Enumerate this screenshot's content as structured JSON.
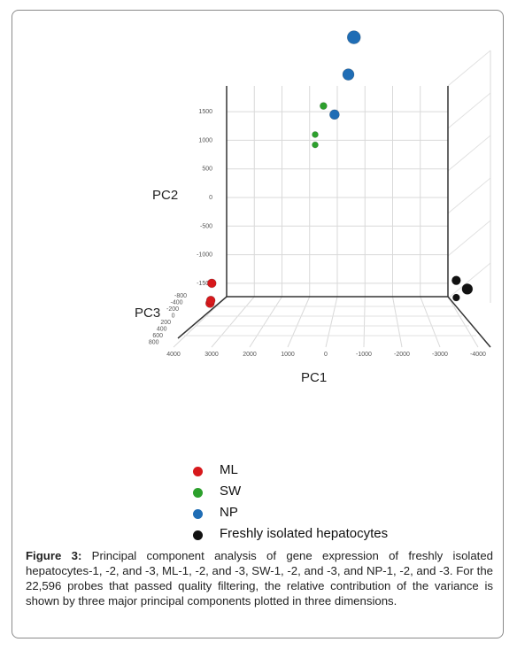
{
  "chart_data": {
    "type": "scatter",
    "axes": {
      "x": {
        "label": "PC1",
        "ticks": [
          "4000",
          "3000",
          "2000",
          "1000",
          "0",
          "-1000",
          "-2000",
          "-3000",
          "-4000"
        ]
      },
      "y": {
        "label": "PC2",
        "ticks": [
          "1500",
          "1000",
          "500",
          "0",
          "-500",
          "-1000",
          "-1500"
        ]
      },
      "z": {
        "label": "PC3",
        "ticks": [
          "-800",
          "-400",
          "-200",
          "0",
          "200",
          "400",
          "600",
          "800"
        ]
      }
    },
    "series": [
      {
        "name": "ML",
        "color": "#d7191c",
        "points": [
          {
            "pc1": 3800,
            "pc2": -1500
          },
          {
            "pc1": 3800,
            "pc2": -1850
          },
          {
            "pc1": 3900,
            "pc2": -1800
          }
        ]
      },
      {
        "name": "SW",
        "color": "#2ca02c",
        "points": [
          {
            "pc1": 500,
            "pc2": 1600
          },
          {
            "pc1": 800,
            "pc2": 1100
          },
          {
            "pc1": 800,
            "pc2": 920
          }
        ]
      },
      {
        "name": "NP",
        "color": "#1f6db5",
        "points": [
          {
            "pc1": -600,
            "pc2": 2800
          },
          {
            "pc1": -400,
            "pc2": 2150
          },
          {
            "pc1": 100,
            "pc2": 1450
          }
        ]
      },
      {
        "name": "Freshly isolated hepatocytes",
        "color": "#111111",
        "points": [
          {
            "pc1": -4300,
            "pc2": -1450
          },
          {
            "pc1": -4300,
            "pc2": -1750
          },
          {
            "pc1": -4700,
            "pc2": -1600
          }
        ]
      }
    ],
    "grid": true,
    "legend_position": "bottom"
  },
  "caption": {
    "label": "Figure 3:",
    "text": " Principal component analysis of gene expression of freshly isolated hepatocytes-1, -2, and -3, ML-1, -2, and -3, SW-1, -2, and -3, and NP-1, -2, and -3. For the 22,596 probes that passed quality filtering, the relative contribution of the variance is shown by three major principal components plotted in three dimensions."
  }
}
